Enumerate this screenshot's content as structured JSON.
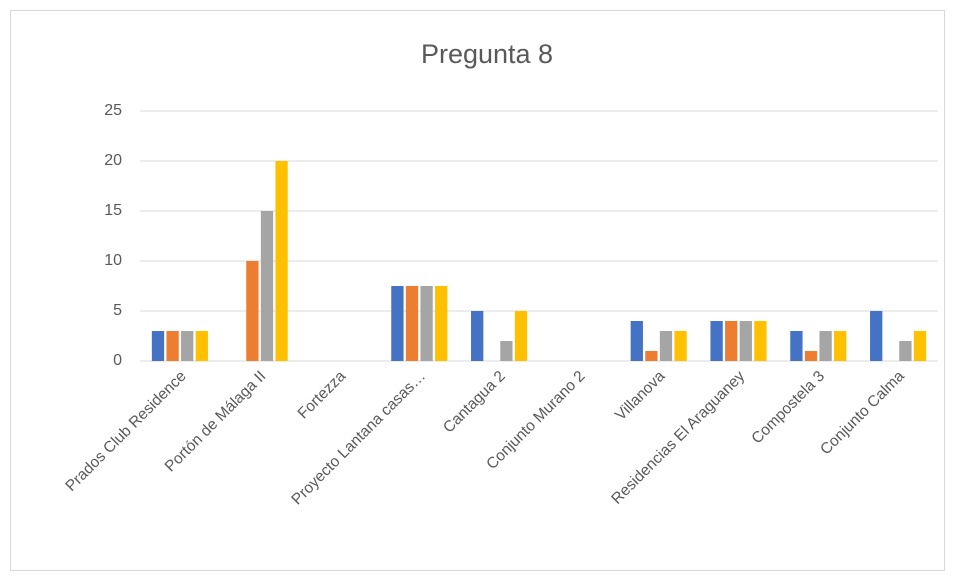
{
  "chart_data": {
    "type": "bar",
    "title": "Pregunta 8",
    "categories": [
      "Prados Club Residence",
      "Portón de Málaga II",
      "Fortezza",
      "Proyecto Lantana casas…",
      "Cantagua 2",
      "Conjunto Murano 2",
      "Villanova",
      "Residencias El Araguaney",
      "Compostela 3",
      "Conjunto Calma"
    ],
    "series": [
      {
        "color": "#4472c4",
        "values": [
          3,
          0,
          0,
          7.5,
          5,
          0,
          4,
          4,
          3,
          5
        ]
      },
      {
        "color": "#ed7d31",
        "values": [
          3,
          10,
          0,
          7.5,
          0,
          0,
          1,
          4,
          1,
          0
        ]
      },
      {
        "color": "#a5a5a5",
        "values": [
          3,
          15,
          0,
          7.5,
          2,
          0,
          3,
          4,
          3,
          2
        ]
      },
      {
        "color": "#ffc000",
        "values": [
          3,
          20,
          0,
          7.5,
          5,
          0,
          3,
          4,
          3,
          3
        ]
      }
    ],
    "ylim": [
      0,
      25
    ],
    "yticks": [
      0,
      5,
      10,
      15,
      20,
      25
    ],
    "grid": true
  }
}
